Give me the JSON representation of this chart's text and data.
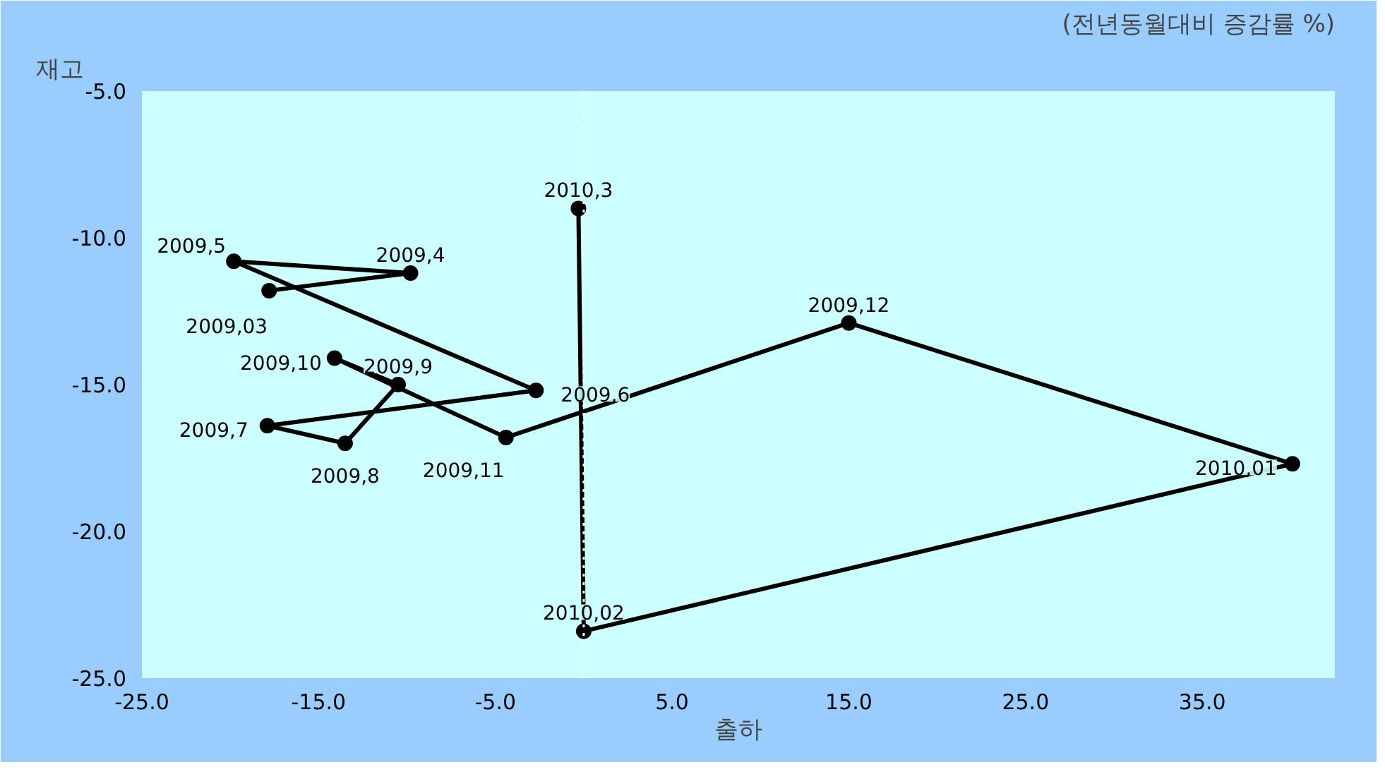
{
  "chart_data": {
    "type": "line",
    "title": "(전년동월대비 증감률 %)",
    "xlabel": "출하",
    "ylabel": "재고",
    "series": [
      {
        "color": "#000000",
        "x": [
          -17.8,
          -9.8,
          -19.8,
          -2.7,
          -17.9,
          -13.5,
          -10.5,
          -14.1,
          -4.4,
          15.0,
          40.1,
          0.0,
          -0.3
        ],
        "values": [
          -11.8,
          -11.2,
          -10.8,
          -15.2,
          -16.4,
          -17.0,
          -15.0,
          -14.1,
          -16.8,
          -12.9,
          -17.7,
          -23.4,
          -9.0
        ]
      }
    ],
    "marker": "circle",
    "line_style": "solid",
    "grid": false,
    "xlim": [
      -25,
      42.5
    ],
    "ylim": [
      -25,
      -5
    ],
    "xticks": [
      {
        "value": -25,
        "label": "-25.0"
      },
      {
        "value": -15,
        "label": "-15.0"
      },
      {
        "value": -5,
        "label": "-5.0"
      },
      {
        "value": 5,
        "label": "5.0"
      },
      {
        "value": 15,
        "label": "15.0"
      },
      {
        "value": 25,
        "label": "25.0"
      },
      {
        "value": 35,
        "label": "35.0"
      }
    ],
    "yticks": [
      {
        "value": -5,
        "label": "-5.0"
      },
      {
        "value": -10,
        "label": "-10.0"
      },
      {
        "value": -15,
        "label": "-15.0"
      },
      {
        "value": -20,
        "label": "-20.0"
      },
      {
        "value": -25,
        "label": "-25.0"
      }
    ],
    "ref_lines": [
      {
        "axis": "x",
        "value": 0,
        "color": "#ffffff",
        "line_style": "dotted"
      }
    ],
    "annotations": [
      {
        "text": "2009,03",
        "x": -17.8,
        "y": -11.8
      },
      {
        "text": "2009,4",
        "x": -9.8,
        "y": -11.2
      },
      {
        "text": "2009,5",
        "x": -19.8,
        "y": -10.8
      },
      {
        "text": "2009,6",
        "x": -2.7,
        "y": -15.2
      },
      {
        "text": "2009,7",
        "x": -17.9,
        "y": -16.4
      },
      {
        "text": "2009,8",
        "x": -13.5,
        "y": -17.0
      },
      {
        "text": "2009,9",
        "x": -10.5,
        "y": -15.0
      },
      {
        "text": "2009,10",
        "x": -14.1,
        "y": -14.1
      },
      {
        "text": "2009,11",
        "x": -4.4,
        "y": -16.8
      },
      {
        "text": "2009,12",
        "x": 15.0,
        "y": -12.9
      },
      {
        "text": "2010,01",
        "x": 40.1,
        "y": -17.7
      },
      {
        "text": "2010,02",
        "x": 0.0,
        "y": -23.4
      },
      {
        "text": "2010,3",
        "x": -0.3,
        "y": -9.0
      }
    ]
  }
}
